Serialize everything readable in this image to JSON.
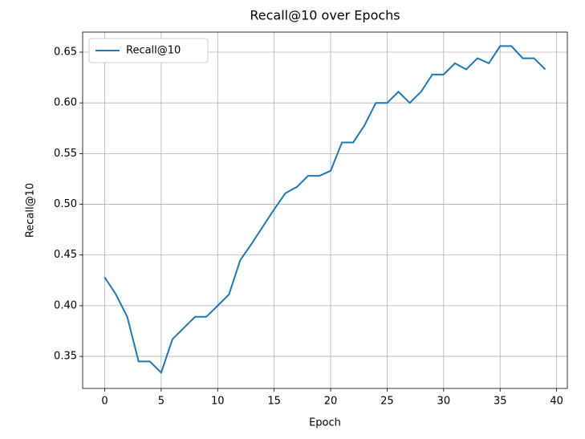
{
  "chart_data": {
    "type": "line",
    "title": "Recall@10 over Epochs",
    "x_label": "Epoch",
    "y_label": "Recall@10",
    "x": [
      0,
      1,
      2,
      3,
      4,
      5,
      6,
      7,
      8,
      9,
      10,
      11,
      12,
      13,
      14,
      15,
      16,
      17,
      18,
      19,
      20,
      21,
      22,
      23,
      24,
      25,
      26,
      27,
      28,
      29,
      30,
      31,
      32,
      33,
      34,
      35,
      36,
      37,
      38,
      39
    ],
    "series": [
      {
        "name": "Recall@10",
        "color": "#1f77b4",
        "values": [
          0.428,
          0.411,
          0.389,
          0.345,
          0.345,
          0.334,
          0.367,
          0.378,
          0.389,
          0.389,
          0.4,
          0.411,
          0.445,
          0.461,
          0.478,
          0.495,
          0.511,
          0.517,
          0.528,
          0.528,
          0.533,
          0.561,
          0.561,
          0.578,
          0.6,
          0.6,
          0.611,
          0.6,
          0.611,
          0.628,
          0.628,
          0.639,
          0.633,
          0.644,
          0.639,
          0.656,
          0.656,
          0.644,
          0.644,
          0.633
        ]
      }
    ],
    "xlim": [
      -1.95,
      40.95
    ],
    "ylim": [
      0.3184,
      0.6698
    ],
    "xticks": [
      0,
      5,
      10,
      15,
      20,
      25,
      30,
      35,
      40
    ],
    "yticks": [
      0.35,
      {
        "value": 0.4,
        "label": "0.40"
      },
      0.45,
      {
        "value": 0.5,
        "label": "0.50"
      },
      0.55,
      {
        "value": 0.6,
        "label": "0.60"
      },
      0.65
    ],
    "grid": true,
    "legend": "upper left"
  }
}
